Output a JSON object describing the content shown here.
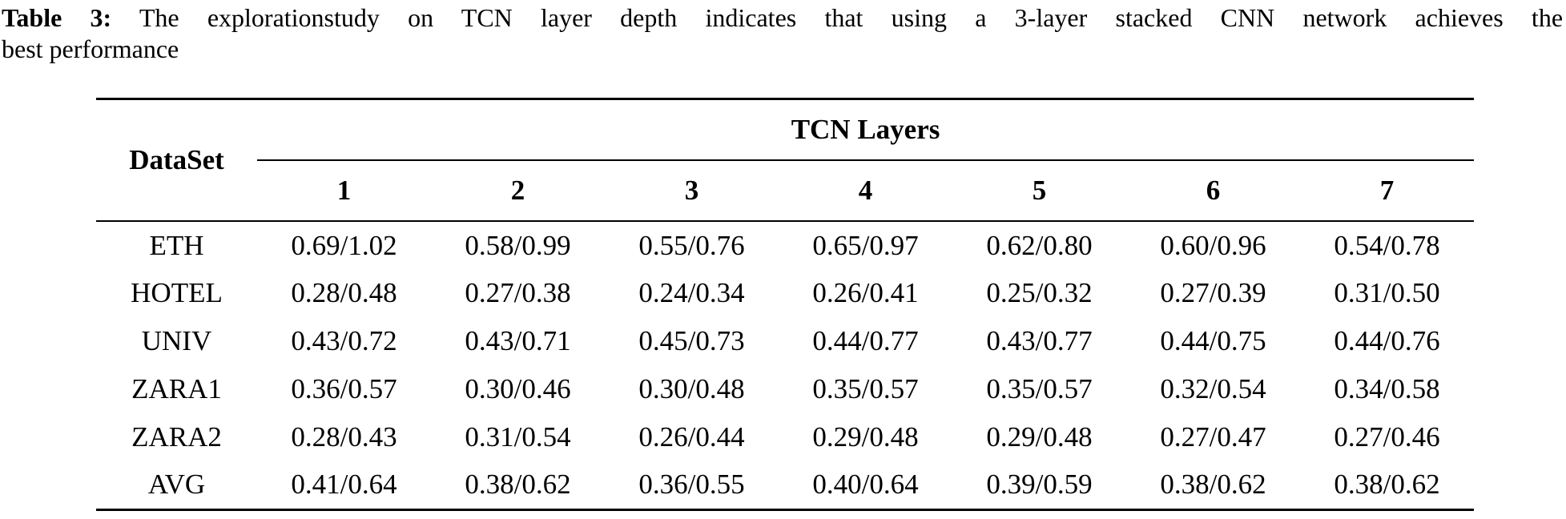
{
  "caption": {
    "label": "Table 3:",
    "line1_rest": "The explorationstudy on TCN layer depth indicates that using a 3-layer stacked CNN network achieves the",
    "line2": "best performance"
  },
  "table": {
    "corner_header": "DataSet",
    "span_header": "TCN Layers",
    "columns": [
      "1",
      "2",
      "3",
      "4",
      "5",
      "6",
      "7"
    ],
    "rows": [
      {
        "dataset": "ETH",
        "values": [
          "0.69/1.02",
          "0.58/0.99",
          "0.55/0.76",
          "0.65/0.97",
          "0.62/0.80",
          "0.60/0.96",
          "0.54/0.78"
        ]
      },
      {
        "dataset": "HOTEL",
        "values": [
          "0.28/0.48",
          "0.27/0.38",
          "0.24/0.34",
          "0.26/0.41",
          "0.25/0.32",
          "0.27/0.39",
          "0.31/0.50"
        ]
      },
      {
        "dataset": "UNIV",
        "values": [
          "0.43/0.72",
          "0.43/0.71",
          "0.45/0.73",
          "0.44/0.77",
          "0.43/0.77",
          "0.44/0.75",
          "0.44/0.76"
        ]
      },
      {
        "dataset": "ZARA1",
        "values": [
          "0.36/0.57",
          "0.30/0.46",
          "0.30/0.48",
          "0.35/0.57",
          "0.35/0.57",
          "0.32/0.54",
          "0.34/0.58"
        ]
      },
      {
        "dataset": "ZARA2",
        "values": [
          "0.28/0.43",
          "0.31/0.54",
          "0.26/0.44",
          "0.29/0.48",
          "0.29/0.48",
          "0.27/0.47",
          "0.27/0.46"
        ]
      },
      {
        "dataset": "AVG",
        "values": [
          "0.41/0.64",
          "0.38/0.62",
          "0.36/0.55",
          "0.40/0.64",
          "0.39/0.59",
          "0.38/0.62",
          "0.38/0.62"
        ]
      }
    ],
    "colors": {
      "text": "#000000",
      "background": "#ffffff",
      "rule": "#000000"
    }
  }
}
